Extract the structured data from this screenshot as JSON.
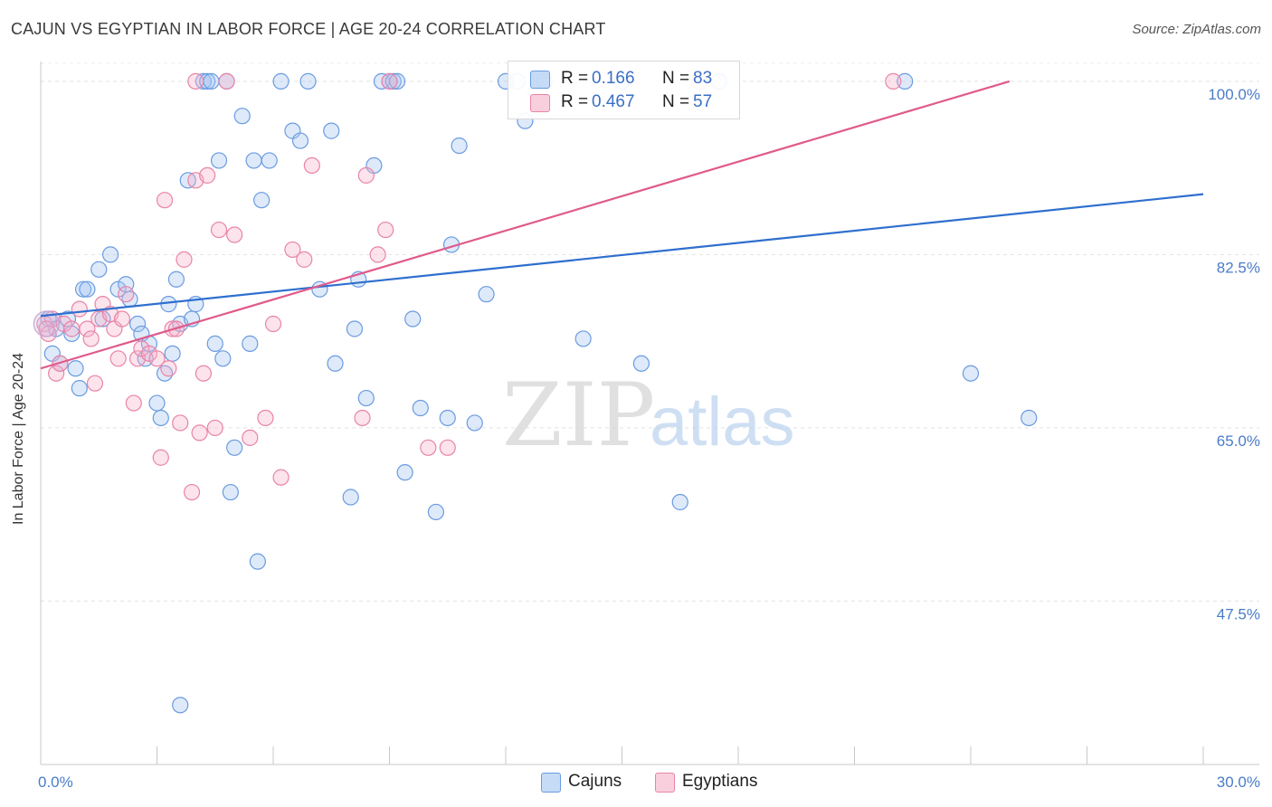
{
  "title": "CAJUN VS EGYPTIAN IN LABOR FORCE | AGE 20-24 CORRELATION CHART",
  "source": "Source: ZipAtlas.com",
  "watermark": {
    "zip": "ZIP",
    "atlas": "atlas"
  },
  "chart_data": {
    "type": "scatter",
    "ylabel": "In Labor Force | Age 20-24",
    "xlim": [
      0,
      30
    ],
    "ylim": [
      31,
      102
    ],
    "x_ticks": [
      {
        "value": 0,
        "label": "0.0%"
      },
      {
        "value": 30,
        "label": "30.0%"
      }
    ],
    "y_ticks": [
      {
        "value": 100,
        "label": "100.0%"
      },
      {
        "value": 82.5,
        "label": "82.5%"
      },
      {
        "value": 65,
        "label": "65.0%"
      },
      {
        "value": 47.5,
        "label": "47.5%"
      }
    ],
    "grid": true,
    "legend_position": "top-center",
    "series": [
      {
        "name": "Cajuns",
        "color": "#6a9be0",
        "fill": "rgba(160,195,240,0.35)",
        "line_color": "#2f6fcf",
        "R": "0.166",
        "N": "83",
        "trend": {
          "x": [
            0,
            30
          ],
          "y": [
            76.3,
            88.6
          ]
        },
        "points": [
          [
            0.2,
            76
          ],
          [
            0.4,
            75
          ],
          [
            0.3,
            72.5
          ],
          [
            0.5,
            71.5
          ],
          [
            0.7,
            76
          ],
          [
            0.8,
            74.5
          ],
          [
            0.9,
            71
          ],
          [
            1.0,
            69
          ],
          [
            1.1,
            79
          ],
          [
            1.2,
            79
          ],
          [
            1.5,
            81
          ],
          [
            1.8,
            82.5
          ],
          [
            2.0,
            79
          ],
          [
            2.2,
            79.5
          ],
          [
            2.3,
            78
          ],
          [
            2.5,
            75.5
          ],
          [
            2.6,
            74.5
          ],
          [
            2.7,
            72
          ],
          [
            2.8,
            73.5
          ],
          [
            3.0,
            67.5
          ],
          [
            3.1,
            66
          ],
          [
            3.2,
            70.5
          ],
          [
            3.3,
            77.5
          ],
          [
            3.4,
            72.5
          ],
          [
            3.5,
            80
          ],
          [
            3.6,
            75.5
          ],
          [
            3.8,
            90
          ],
          [
            3.9,
            76
          ],
          [
            4.0,
            77.5
          ],
          [
            4.2,
            100
          ],
          [
            4.3,
            100
          ],
          [
            4.4,
            100
          ],
          [
            4.5,
            73.5
          ],
          [
            4.6,
            92
          ],
          [
            4.7,
            72
          ],
          [
            5.0,
            63
          ],
          [
            4.8,
            100
          ],
          [
            5.2,
            96.5
          ],
          [
            5.4,
            73.5
          ],
          [
            5.5,
            92
          ],
          [
            5.7,
            88
          ],
          [
            5.9,
            92
          ],
          [
            6.2,
            100
          ],
          [
            6.5,
            95
          ],
          [
            6.7,
            94
          ],
          [
            6.9,
            100
          ],
          [
            7.2,
            79
          ],
          [
            7.5,
            95
          ],
          [
            7.6,
            71.5
          ],
          [
            8.0,
            58
          ],
          [
            8.1,
            75
          ],
          [
            8.2,
            80
          ],
          [
            8.4,
            68
          ],
          [
            8.6,
            91.5
          ],
          [
            8.8,
            100
          ],
          [
            9.0,
            100
          ],
          [
            9.1,
            100
          ],
          [
            9.2,
            100
          ],
          [
            9.4,
            60.5
          ],
          [
            9.6,
            76
          ],
          [
            9.8,
            67
          ],
          [
            10.2,
            56.5
          ],
          [
            10.5,
            66
          ],
          [
            10.6,
            83.5
          ],
          [
            10.8,
            93.5
          ],
          [
            11.2,
            65.5
          ],
          [
            11.5,
            78.5
          ],
          [
            12.0,
            100
          ],
          [
            12.3,
            100
          ],
          [
            12.5,
            96
          ],
          [
            13.0,
            100
          ],
          [
            14.0,
            74
          ],
          [
            15.0,
            100
          ],
          [
            15.5,
            71.5
          ],
          [
            16.5,
            57.5
          ],
          [
            17.5,
            100
          ],
          [
            22.3,
            100
          ],
          [
            24.0,
            70.5
          ],
          [
            25.5,
            66
          ],
          [
            3.6,
            37
          ],
          [
            5.6,
            51.5
          ],
          [
            4.9,
            58.5
          ],
          [
            1.6,
            76
          ]
        ]
      },
      {
        "name": "Egyptians",
        "color": "#e884a8",
        "fill": "rgba(245,175,200,0.35)",
        "line_color": "#e05a8b",
        "R": "0.467",
        "N": "57",
        "trend": {
          "x": [
            0,
            25
          ],
          "y": [
            71,
            100
          ]
        },
        "points": [
          [
            0.1,
            75.5
          ],
          [
            0.2,
            74.5
          ],
          [
            0.3,
            76
          ],
          [
            0.4,
            70.5
          ],
          [
            0.5,
            71.5
          ],
          [
            0.6,
            75.5
          ],
          [
            0.8,
            75
          ],
          [
            1.0,
            77
          ],
          [
            1.2,
            75
          ],
          [
            1.3,
            74
          ],
          [
            1.4,
            69.5
          ],
          [
            1.5,
            76
          ],
          [
            1.6,
            77.5
          ],
          [
            1.8,
            76.5
          ],
          [
            1.9,
            75
          ],
          [
            2.0,
            72
          ],
          [
            2.1,
            76
          ],
          [
            2.2,
            78.5
          ],
          [
            2.4,
            67.5
          ],
          [
            2.5,
            72
          ],
          [
            2.6,
            73
          ],
          [
            2.8,
            72.5
          ],
          [
            3.0,
            72
          ],
          [
            3.1,
            62
          ],
          [
            3.2,
            88
          ],
          [
            3.3,
            71
          ],
          [
            3.4,
            75
          ],
          [
            3.5,
            75
          ],
          [
            3.6,
            65.5
          ],
          [
            3.7,
            82
          ],
          [
            3.9,
            58.5
          ],
          [
            4.0,
            90
          ],
          [
            4.1,
            64.5
          ],
          [
            4.2,
            70.5
          ],
          [
            4.3,
            90.5
          ],
          [
            4.5,
            65
          ],
          [
            4.6,
            85
          ],
          [
            4.8,
            100
          ],
          [
            5.0,
            84.5
          ],
          [
            5.4,
            64
          ],
          [
            5.8,
            66
          ],
          [
            6.0,
            75.5
          ],
          [
            6.2,
            60
          ],
          [
            6.5,
            83
          ],
          [
            6.8,
            82
          ],
          [
            7.0,
            91.5
          ],
          [
            8.3,
            66
          ],
          [
            8.4,
            90.5
          ],
          [
            8.7,
            82.5
          ],
          [
            8.9,
            85
          ],
          [
            9.0,
            100
          ],
          [
            10.0,
            63
          ],
          [
            10.5,
            63
          ],
          [
            17.0,
            100
          ],
          [
            22.0,
            100
          ],
          [
            0.15,
            75
          ],
          [
            4.0,
            100
          ]
        ]
      }
    ]
  }
}
